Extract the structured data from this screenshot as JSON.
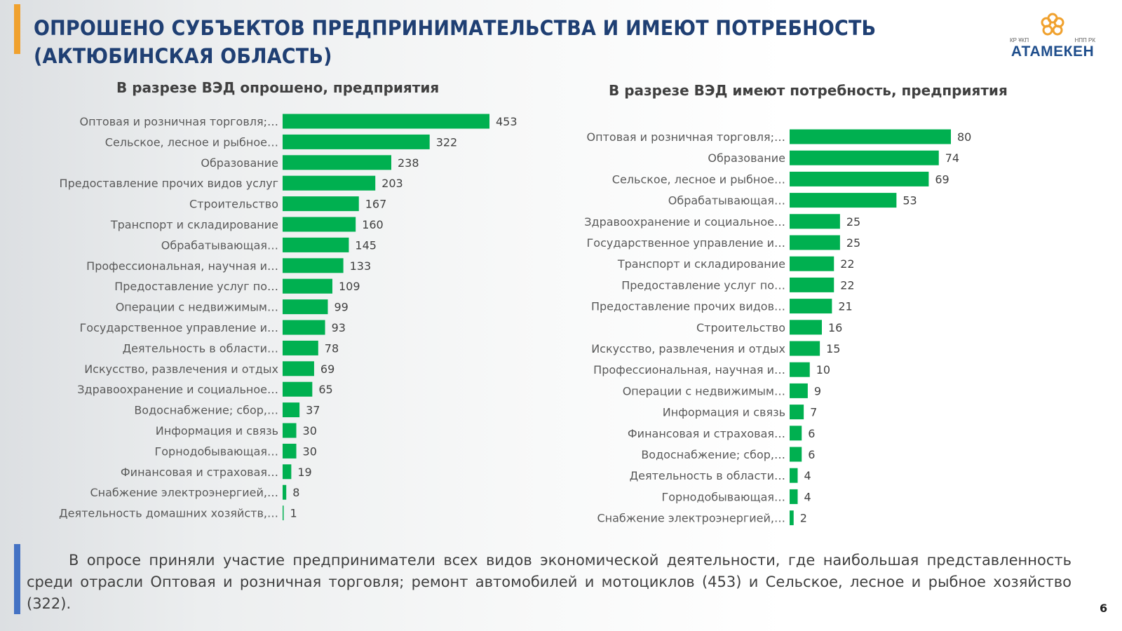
{
  "header": {
    "title_line1": "ОПРОШЕНО СУБЪЕКТОВ ПРЕДПРИНИМАТЕЛЬСТВА И ИМЕЮТ ПОТРЕБНОСТЬ",
    "title_line2": "(АКТЮБИНСКАЯ ОБЛАСТЬ)",
    "accent_color": "#f0a12e",
    "title_color": "#1f3f73"
  },
  "logo": {
    "name": "АТАМЕКЕН",
    "left_small": "КР ҰКП",
    "right_small": "НПП РК",
    "icon": "atameken-flower-icon",
    "icon_color": "#f0a12e"
  },
  "chart_data": [
    {
      "type": "bar",
      "orientation": "horizontal",
      "title": "В разрезе ВЭД опрошено, предприятия",
      "bar_color": "#00b050",
      "categories": [
        "Оптовая и розничная торговля;…",
        "Сельское, лесное и рыбное…",
        "Образование",
        "Предоставление прочих видов услуг",
        "Строительство",
        "Транспорт и складирование",
        "Обрабатывающая…",
        "Профессиональная, научная и…",
        "Предоставление услуг по…",
        "Операции с недвижимым…",
        "Государственное управление и…",
        "Деятельность в области…",
        "Искусство, развлечения и отдых",
        "Здравоохранение и социальное…",
        "Водоснабжение; сбор,…",
        "Информация и связь",
        "Горнодобывающая…",
        "Финансовая и страховая…",
        "Снабжение электроэнергией,…",
        "Деятельность домашних хозяйств,…"
      ],
      "values": [
        453,
        322,
        238,
        203,
        167,
        160,
        145,
        133,
        109,
        99,
        93,
        78,
        69,
        65,
        37,
        30,
        30,
        19,
        8,
        1
      ]
    },
    {
      "type": "bar",
      "orientation": "horizontal",
      "title": "В разрезе ВЭД имеют потребность, предприятия",
      "bar_color": "#00b050",
      "categories": [
        "Оптовая и розничная торговля;…",
        "Образование",
        "Сельское, лесное и рыбное…",
        "Обрабатывающая…",
        "Здравоохранение и социальное…",
        "Государственное управление и…",
        "Транспорт и складирование",
        "Предоставление услуг по…",
        "Предоставление прочих видов…",
        "Строительство",
        "Искусство, развлечения и отдых",
        "Профессиональная, научная и…",
        "Операции с недвижимым…",
        "Информация и связь",
        "Финансовая и страховая…",
        "Водоснабжение; сбор,…",
        "Деятельность в области…",
        "Горнодобывающая…",
        "Снабжение электроэнергией,…"
      ],
      "values": [
        80,
        74,
        69,
        53,
        25,
        25,
        22,
        22,
        21,
        16,
        15,
        10,
        9,
        7,
        6,
        6,
        4,
        4,
        2
      ]
    }
  ],
  "note": {
    "text": "В опросе приняли участие предприниматели всех видов экономической деятельности, где наибольшая представленность среди отрасли Оптовая и розничная торговля; ремонт автомобилей и мотоциклов (453) и Сельское, лесное и рыбное хозяйство (322).",
    "accent_color": "#4472c4"
  },
  "page_number": "6"
}
